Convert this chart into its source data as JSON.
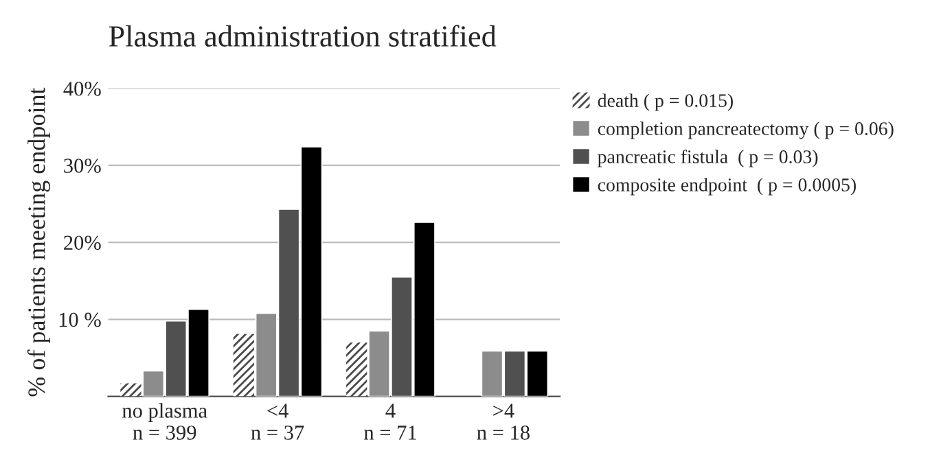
{
  "chart_data": {
    "type": "bar",
    "title": "Plasma administration stratified",
    "ylabel": "% of patients meeting endpoint",
    "categories": [
      "no plasma\nn = 399",
      "<4\nn = 37",
      "4\nn = 71",
      ">4\nn = 18"
    ],
    "series": [
      {
        "name": "death ( p = 0.015)",
        "color": "#4a4a4a",
        "values": [
          1.7,
          8.1,
          7.0,
          0
        ]
      },
      {
        "name": "completion pancreatectomy ( p = 0.06)",
        "color": "#8c8c8c",
        "values": [
          3.3,
          10.8,
          8.5,
          5.9
        ]
      },
      {
        "name": "pancreatic fistula  ( p = 0.03)",
        "color": "#505050",
        "values": [
          9.8,
          24.3,
          15.5,
          5.9
        ]
      },
      {
        "name": "composite endpoint  ( p = 0.0005)",
        "color": "#000000",
        "values": [
          11.3,
          32.4,
          22.6,
          5.9
        ]
      }
    ],
    "ylim": [
      0,
      40
    ],
    "yticks": [
      {
        "value": 10,
        "label": "10 %"
      },
      {
        "value": 20,
        "label": "20%"
      },
      {
        "value": 30,
        "label": "30%"
      },
      {
        "value": 40,
        "label": "40%"
      }
    ],
    "grid": "y",
    "legend": "right"
  }
}
